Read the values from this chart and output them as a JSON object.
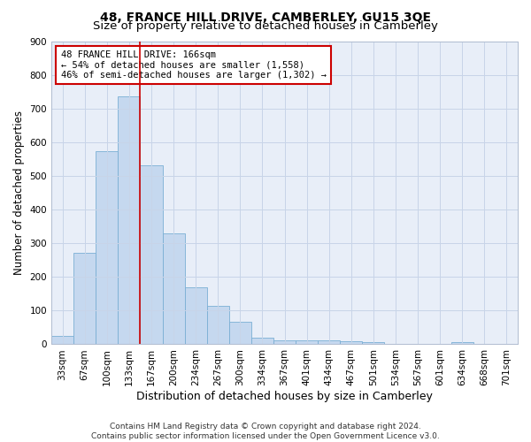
{
  "title": "48, FRANCE HILL DRIVE, CAMBERLEY, GU15 3QE",
  "subtitle": "Size of property relative to detached houses in Camberley",
  "xlabel": "Distribution of detached houses by size in Camberley",
  "ylabel": "Number of detached properties",
  "categories": [
    "33sqm",
    "67sqm",
    "100sqm",
    "133sqm",
    "167sqm",
    "200sqm",
    "234sqm",
    "267sqm",
    "300sqm",
    "334sqm",
    "367sqm",
    "401sqm",
    "434sqm",
    "467sqm",
    "501sqm",
    "534sqm",
    "567sqm",
    "601sqm",
    "634sqm",
    "668sqm",
    "701sqm"
  ],
  "values": [
    25,
    272,
    572,
    735,
    530,
    330,
    170,
    115,
    68,
    20,
    13,
    12,
    12,
    9,
    7,
    0,
    0,
    0,
    7,
    0,
    0
  ],
  "bar_color": "#c5d8ef",
  "bar_edge_color": "#7aafd4",
  "bar_linewidth": 0.6,
  "property_line_x": 4.5,
  "annotation_text": "48 FRANCE HILL DRIVE: 166sqm\n← 54% of detached houses are smaller (1,558)\n46% of semi-detached houses are larger (1,302) →",
  "annotation_box_color": "#ffffff",
  "annotation_box_edge_color": "#cc0000",
  "ylim": [
    0,
    900
  ],
  "yticks": [
    0,
    100,
    200,
    300,
    400,
    500,
    600,
    700,
    800,
    900
  ],
  "grid_color": "#c8d4e8",
  "bg_color": "#e8eef8",
  "footnote": "Contains HM Land Registry data © Crown copyright and database right 2024.\nContains public sector information licensed under the Open Government Licence v3.0.",
  "title_fontsize": 10,
  "subtitle_fontsize": 9.5,
  "xlabel_fontsize": 9,
  "ylabel_fontsize": 8.5,
  "tick_fontsize": 7.5,
  "annot_fontsize": 7.5,
  "footnote_fontsize": 6.5
}
